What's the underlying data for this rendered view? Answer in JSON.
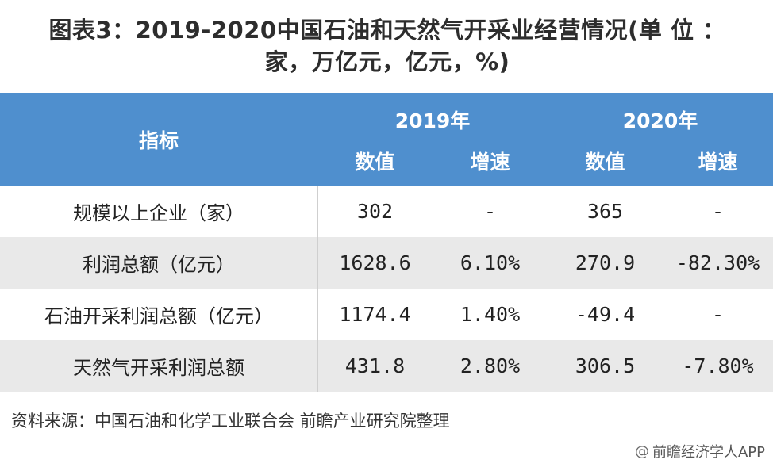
{
  "title": {
    "line1": "图表3：2019-2020中国石油和天然气开采业经营情况(单 位 ：",
    "line2": "家，万亿元，亿元，%)"
  },
  "header": {
    "indicator": "指标",
    "year1": "2019年",
    "year2": "2020年",
    "value": "数值",
    "growth": "增速"
  },
  "rows": [
    {
      "indicator": "规模以上企业（家）",
      "v2019": "302",
      "g2019": "-",
      "v2020": "365",
      "g2020": "-"
    },
    {
      "indicator": "利润总额（亿元）",
      "v2019": "1628.6",
      "g2019": "6.10%",
      "v2020": "270.9",
      "g2020": "-82.30%"
    },
    {
      "indicator": "石油开采利润总额（亿元）",
      "v2019": "1174.4",
      "g2019": "1.40%",
      "v2020": "-49.4",
      "g2020": "-"
    },
    {
      "indicator": "天然气开采利润总额",
      "v2019": "431.8",
      "g2019": "2.80%",
      "v2020": "306.5",
      "g2020": "-7.80%"
    }
  ],
  "source": "资料来源：中国石油和化学工业联合会 前瞻产业研究院整理",
  "watermark": "前瞻经济学人APP",
  "colors": {
    "header_bg": "#4f8fce",
    "alt_row": "#e9e9e9"
  }
}
